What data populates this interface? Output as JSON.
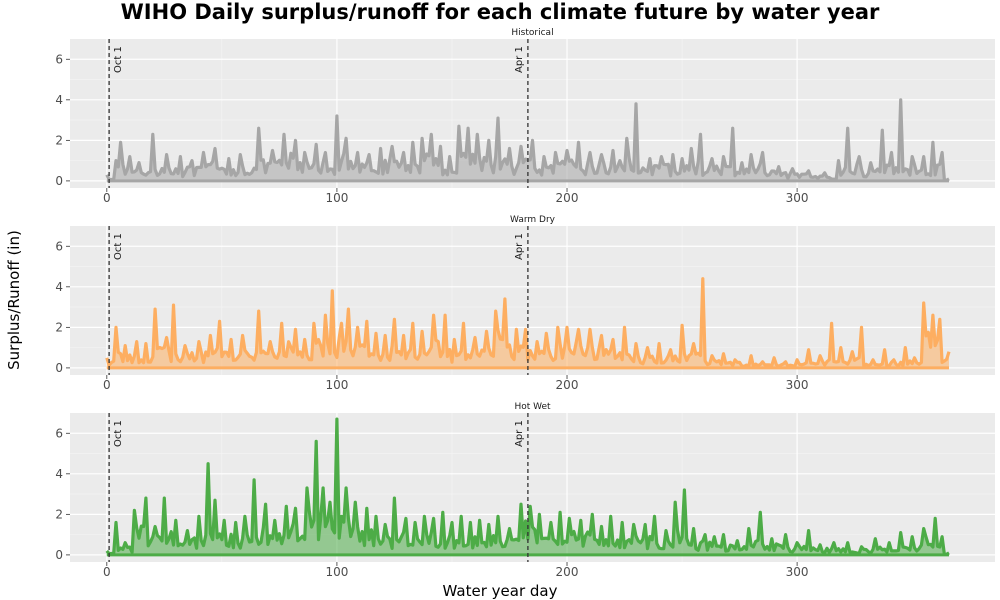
{
  "chart_data": {
    "type": "area",
    "title": "WIHO Daily surplus/runoff for each climate future by water year",
    "xlabel": "Water year day",
    "ylabel": "Surplus/Runoff (in)",
    "xlim": [
      -16,
      386
    ],
    "ylim": [
      -0.35,
      7.0
    ],
    "x_ticks": [
      0,
      100,
      200,
      300
    ],
    "y_ticks": [
      0,
      2,
      4,
      6
    ],
    "grid": true,
    "legend": "none",
    "reference_lines": [
      {
        "x": 1,
        "label": "Oct 1"
      },
      {
        "x": 183,
        "label": "Apr 1"
      }
    ],
    "panels": [
      {
        "name": "Historical",
        "color": "#A6A6A6",
        "peaks": [
          [
            0,
            0.3
          ],
          [
            4,
            1.0
          ],
          [
            6,
            1.9
          ],
          [
            10,
            1.2
          ],
          [
            14,
            0.9
          ],
          [
            20,
            2.3
          ],
          [
            26,
            1.3
          ],
          [
            32,
            1.2
          ],
          [
            37,
            1.0
          ],
          [
            42,
            1.4
          ],
          [
            47,
            1.6
          ],
          [
            53,
            1.1
          ],
          [
            58,
            1.3
          ],
          [
            66,
            2.6
          ],
          [
            72,
            1.5
          ],
          [
            77,
            2.3
          ],
          [
            82,
            2.0
          ],
          [
            86,
            1.4
          ],
          [
            91,
            1.8
          ],
          [
            95,
            1.4
          ],
          [
            100,
            3.2
          ],
          [
            104,
            2.1
          ],
          [
            109,
            1.4
          ],
          [
            114,
            1.3
          ],
          [
            119,
            1.6
          ],
          [
            124,
            1.7
          ],
          [
            129,
            1.4
          ],
          [
            133,
            1.9
          ],
          [
            137,
            2.1
          ],
          [
            141,
            2.3
          ],
          [
            145,
            1.7
          ],
          [
            149,
            1.2
          ],
          [
            153,
            2.7
          ],
          [
            157,
            2.6
          ],
          [
            161,
            2.3
          ],
          [
            166,
            2.0
          ],
          [
            170,
            3.1
          ],
          [
            175,
            1.6
          ],
          [
            180,
            1.7
          ],
          [
            185,
            2.0
          ],
          [
            190,
            1.2
          ],
          [
            195,
            1.4
          ],
          [
            200,
            1.5
          ],
          [
            205,
            1.9
          ],
          [
            210,
            1.4
          ],
          [
            215,
            1.3
          ],
          [
            220,
            1.5
          ],
          [
            226,
            2.1
          ],
          [
            230,
            3.8
          ],
          [
            236,
            1.1
          ],
          [
            241,
            1.2
          ],
          [
            246,
            1.3
          ],
          [
            250,
            1.1
          ],
          [
            254,
            1.6
          ],
          [
            258,
            2.3
          ],
          [
            263,
            1.1
          ],
          [
            268,
            1.2
          ],
          [
            272,
            2.6
          ],
          [
            276,
            0.9
          ],
          [
            280,
            1.3
          ],
          [
            285,
            1.4
          ],
          [
            292,
            0.7
          ],
          [
            298,
            0.6
          ],
          [
            305,
            0.5
          ],
          [
            312,
            0.4
          ],
          [
            318,
            1.0
          ],
          [
            322,
            2.6
          ],
          [
            327,
            1.2
          ],
          [
            332,
            0.9
          ],
          [
            337,
            2.5
          ],
          [
            341,
            1.4
          ],
          [
            345,
            4.0
          ],
          [
            350,
            1.2
          ],
          [
            355,
            1.2
          ],
          [
            359,
            1.9
          ],
          [
            363,
            1.4
          ],
          [
            366,
            0.1
          ]
        ]
      },
      {
        "name": "Warm Dry",
        "color": "#FDAE61",
        "peaks": [
          [
            0,
            0.5
          ],
          [
            4,
            2.0
          ],
          [
            8,
            1.1
          ],
          [
            13,
            1.3
          ],
          [
            17,
            1.2
          ],
          [
            21,
            2.9
          ],
          [
            26,
            1.5
          ],
          [
            29,
            3.1
          ],
          [
            34,
            1.1
          ],
          [
            40,
            1.3
          ],
          [
            45,
            1.6
          ],
          [
            49,
            2.3
          ],
          [
            54,
            1.4
          ],
          [
            59,
            1.6
          ],
          [
            66,
            2.8
          ],
          [
            71,
            1.3
          ],
          [
            76,
            2.2
          ],
          [
            82,
            1.9
          ],
          [
            86,
            1.4
          ],
          [
            90,
            2.2
          ],
          [
            95,
            2.6
          ],
          [
            98,
            3.8
          ],
          [
            102,
            2.2
          ],
          [
            105,
            2.9
          ],
          [
            109,
            2.0
          ],
          [
            113,
            2.3
          ],
          [
            117,
            1.7
          ],
          [
            121,
            1.6
          ],
          [
            125,
            2.4
          ],
          [
            129,
            1.6
          ],
          [
            133,
            2.2
          ],
          [
            137,
            1.8
          ],
          [
            142,
            2.6
          ],
          [
            147,
            2.6
          ],
          [
            151,
            1.4
          ],
          [
            155,
            2.2
          ],
          [
            160,
            1.5
          ],
          [
            165,
            1.8
          ],
          [
            169,
            2.8
          ],
          [
            173,
            3.4
          ],
          [
            178,
            1.9
          ],
          [
            182,
            1.9
          ],
          [
            187,
            1.3
          ],
          [
            191,
            1.7
          ],
          [
            196,
            2.0
          ],
          [
            200,
            2.0
          ],
          [
            205,
            1.9
          ],
          [
            210,
            1.9
          ],
          [
            215,
            1.6
          ],
          [
            220,
            1.4
          ],
          [
            225,
            2.0
          ],
          [
            230,
            1.2
          ],
          [
            235,
            1.0
          ],
          [
            240,
            1.2
          ],
          [
            245,
            0.9
          ],
          [
            250,
            2.1
          ],
          [
            255,
            1.2
          ],
          [
            259,
            4.4
          ],
          [
            263,
            0.6
          ],
          [
            268,
            0.7
          ],
          [
            273,
            0.4
          ],
          [
            280,
            0.6
          ],
          [
            285,
            0.3
          ],
          [
            290,
            0.5
          ],
          [
            295,
            0.3
          ],
          [
            300,
            0.4
          ],
          [
            305,
            0.9
          ],
          [
            310,
            0.6
          ],
          [
            315,
            2.2
          ],
          [
            319,
            1.0
          ],
          [
            324,
            0.8
          ],
          [
            328,
            2.0
          ],
          [
            333,
            0.4
          ],
          [
            338,
            0.9
          ],
          [
            342,
            0.4
          ],
          [
            347,
            1.0
          ],
          [
            351,
            0.5
          ],
          [
            355,
            3.2
          ],
          [
            359,
            2.6
          ],
          [
            362,
            2.4
          ],
          [
            366,
            0.8
          ]
        ]
      },
      {
        "name": "Hot Wet",
        "color": "#4DAC47",
        "peaks": [
          [
            0,
            0.2
          ],
          [
            4,
            1.6
          ],
          [
            8,
            0.6
          ],
          [
            12,
            2.2
          ],
          [
            17,
            2.8
          ],
          [
            21,
            1.4
          ],
          [
            25,
            2.8
          ],
          [
            30,
            1.7
          ],
          [
            35,
            1.2
          ],
          [
            40,
            1.9
          ],
          [
            44,
            4.5
          ],
          [
            47,
            2.7
          ],
          [
            51,
            1.7
          ],
          [
            56,
            1.6
          ],
          [
            60,
            1.9
          ],
          [
            64,
            3.7
          ],
          [
            69,
            2.5
          ],
          [
            73,
            1.7
          ],
          [
            78,
            2.4
          ],
          [
            82,
            2.3
          ],
          [
            87,
            3.3
          ],
          [
            91,
            5.6
          ],
          [
            94,
            3.3
          ],
          [
            97,
            2.6
          ],
          [
            100,
            6.7
          ],
          [
            104,
            3.3
          ],
          [
            108,
            2.6
          ],
          [
            113,
            2.3
          ],
          [
            117,
            1.9
          ],
          [
            121,
            1.5
          ],
          [
            125,
            2.8
          ],
          [
            130,
            1.8
          ],
          [
            134,
            1.6
          ],
          [
            138,
            1.9
          ],
          [
            142,
            1.8
          ],
          [
            146,
            2.1
          ],
          [
            150,
            1.6
          ],
          [
            154,
            1.9
          ],
          [
            158,
            1.6
          ],
          [
            162,
            1.7
          ],
          [
            166,
            1.5
          ],
          [
            170,
            1.9
          ],
          [
            175,
            1.3
          ],
          [
            180,
            2.5
          ],
          [
            184,
            2.4
          ],
          [
            188,
            2.0
          ],
          [
            193,
            1.6
          ],
          [
            197,
            2.1
          ],
          [
            201,
            1.8
          ],
          [
            206,
            1.7
          ],
          [
            211,
            2.0
          ],
          [
            215,
            1.4
          ],
          [
            219,
            1.9
          ],
          [
            224,
            1.6
          ],
          [
            229,
            1.5
          ],
          [
            234,
            1.5
          ],
          [
            238,
            1.9
          ],
          [
            243,
            1.2
          ],
          [
            247,
            2.6
          ],
          [
            251,
            3.2
          ],
          [
            255,
            1.3
          ],
          [
            260,
            1.0
          ],
          [
            264,
            0.9
          ],
          [
            268,
            1.0
          ],
          [
            274,
            0.7
          ],
          [
            279,
            1.3
          ],
          [
            284,
            2.1
          ],
          [
            289,
            0.8
          ],
          [
            295,
            1.0
          ],
          [
            300,
            0.6
          ],
          [
            305,
            1.2
          ],
          [
            310,
            0.5
          ],
          [
            316,
            0.6
          ],
          [
            322,
            0.6
          ],
          [
            328,
            0.4
          ],
          [
            334,
            0.8
          ],
          [
            340,
            0.6
          ],
          [
            345,
            1.1
          ],
          [
            350,
            0.9
          ],
          [
            355,
            1.3
          ],
          [
            360,
            1.8
          ],
          [
            363,
            0.9
          ],
          [
            366,
            0.1
          ]
        ]
      }
    ]
  }
}
